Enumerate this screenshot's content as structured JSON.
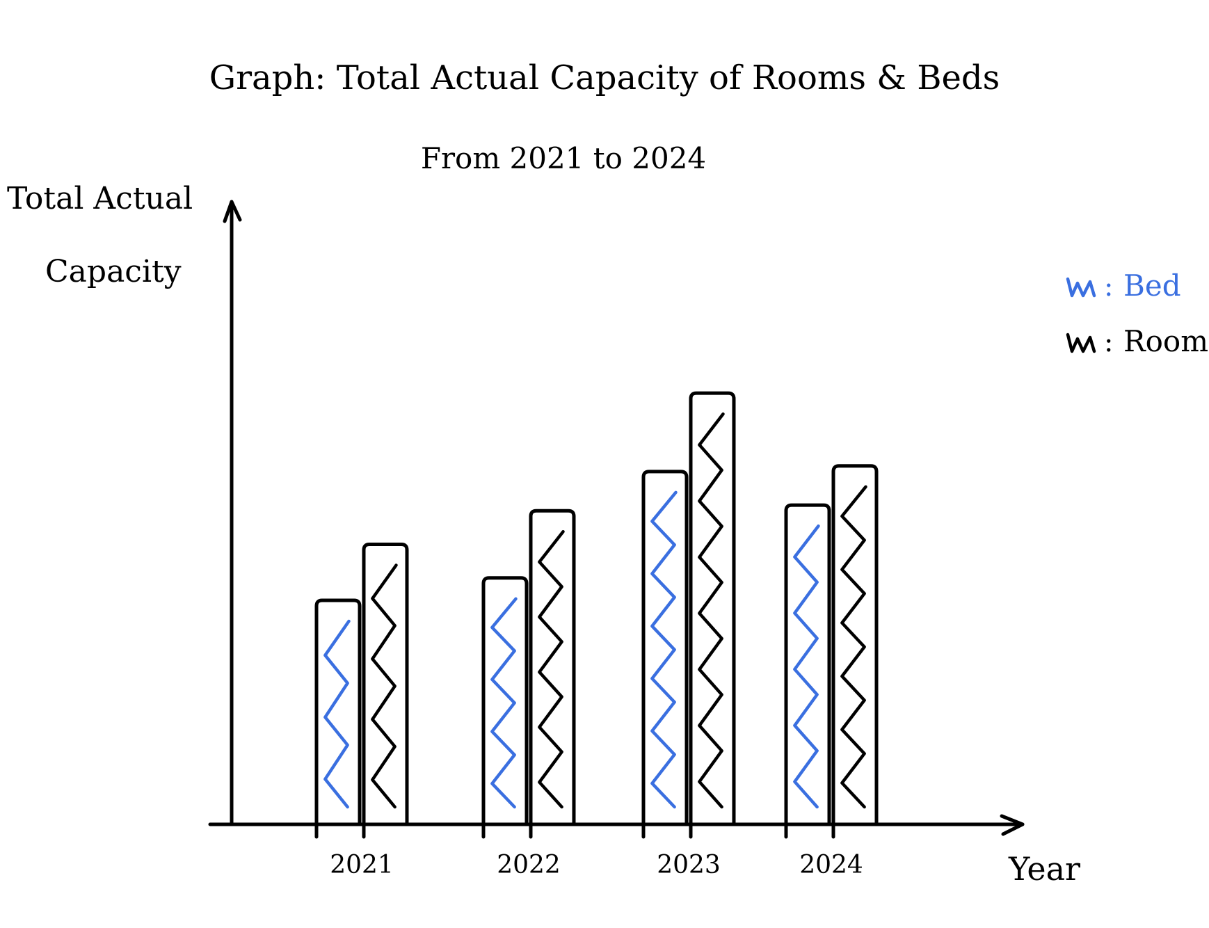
{
  "chart_data": {
    "type": "bar",
    "title": "Graph: Total Actual Capacity of Rooms & Beds",
    "subtitle": "From 2021 to 2024",
    "xlabel": "Year",
    "ylabel": "Total Actual Capacity",
    "categories": [
      "2021",
      "2022",
      "2023",
      "2024"
    ],
    "series": [
      {
        "name": "Bed",
        "values": [
          40,
          44,
          63,
          57
        ],
        "color": "#3a6fe0"
      },
      {
        "name": "Room",
        "values": [
          50,
          56,
          77,
          64
        ],
        "color": "#000000"
      }
    ],
    "ylim": [
      0,
      100
    ],
    "y_ticks_shown": false,
    "grid": false,
    "legend_placement": "top-right",
    "legend": [
      {
        "label": "Bed",
        "color": "#3a6fe0",
        "marker": "zigzag-icon"
      },
      {
        "label": "Room",
        "color": "#000000",
        "marker": "zigzag-icon"
      }
    ],
    "fill_style": "hand-drawn zigzag",
    "stroke_color": "#000000"
  }
}
